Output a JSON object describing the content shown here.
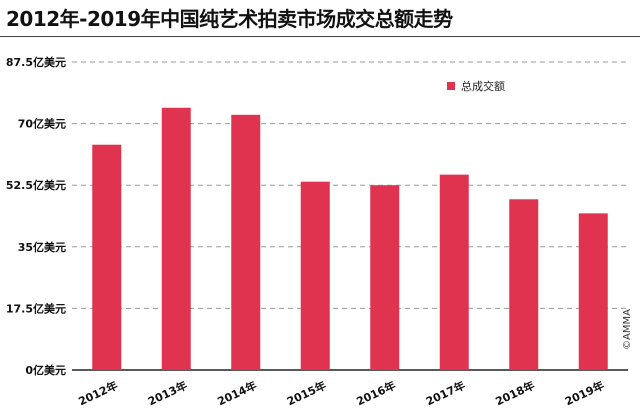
{
  "title": "2012年-2019年中国纯艺术拍卖市场成交总额走势",
  "credit": "©AMMA",
  "colors": {
    "bar": "#e0334f",
    "grid": "#9a9a9a",
    "axis": "#222222"
  },
  "chart_data": {
    "type": "bar",
    "title": "2012年-2019年中国纯艺术拍卖市场成交总额走势",
    "categories": [
      "2012年",
      "2013年",
      "2014年",
      "2015年",
      "2016年",
      "2017年",
      "2018年",
      "2019年"
    ],
    "series": [
      {
        "name": "总成交额",
        "values": [
          64,
          74.5,
          72.5,
          53.5,
          52.5,
          55.5,
          48.5,
          44.5
        ]
      }
    ],
    "unit": "亿美元",
    "ylim": [
      0,
      87.5
    ],
    "yticks": [
      0,
      17.5,
      35,
      52.5,
      70,
      87.5
    ],
    "ytick_labels": [
      "0亿美元",
      "17.5亿美元",
      "35亿美元",
      "52.5亿美元",
      "70亿美元",
      "87.5亿美元"
    ],
    "grid": true,
    "legend_position": "top-right"
  }
}
